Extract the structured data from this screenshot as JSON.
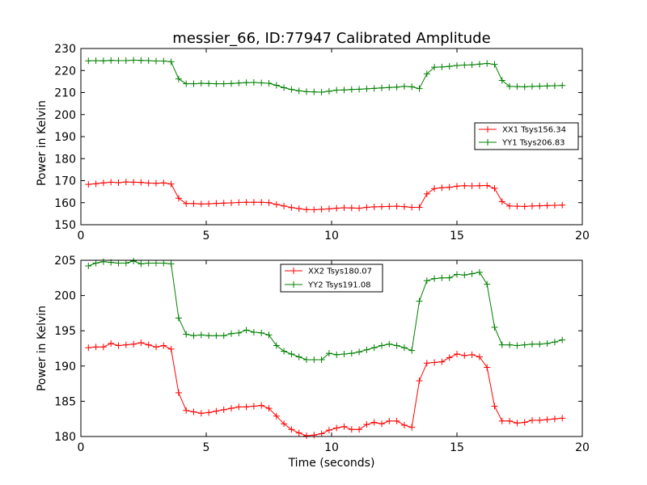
{
  "chart_data": [
    {
      "type": "line",
      "title": "messier_66, ID:77947 Calibrated Amplitude",
      "xlabel": "",
      "ylabel": "Power in Kelvin",
      "xlim": [
        0,
        20
      ],
      "ylim": [
        150,
        230
      ],
      "xticks": [
        0,
        5,
        10,
        15,
        20
      ],
      "yticks": [
        150,
        160,
        170,
        180,
        190,
        200,
        210,
        220,
        230
      ],
      "legend_position": "center-right",
      "x": [
        0.3,
        0.6,
        0.9,
        1.2,
        1.5,
        1.8,
        2.1,
        2.4,
        2.7,
        3.0,
        3.3,
        3.6,
        3.9,
        4.2,
        4.5,
        4.8,
        5.1,
        5.4,
        5.7,
        6.0,
        6.3,
        6.6,
        6.9,
        7.2,
        7.5,
        7.8,
        8.1,
        8.4,
        8.7,
        9.0,
        9.3,
        9.6,
        9.9,
        10.2,
        10.5,
        10.8,
        11.1,
        11.4,
        11.7,
        12.0,
        12.3,
        12.6,
        12.9,
        13.2,
        13.5,
        13.8,
        14.1,
        14.4,
        14.7,
        15.0,
        15.3,
        15.6,
        15.9,
        16.2,
        16.5,
        16.8,
        17.1,
        17.4,
        17.7,
        18.0,
        18.3,
        18.6,
        18.9,
        19.2
      ],
      "series": [
        {
          "name": "XX1 Tsys156.34",
          "color": "#ff0000",
          "values": [
            168.3,
            168.6,
            169.0,
            169.3,
            169.1,
            169.4,
            169.3,
            169.2,
            168.9,
            168.8,
            169.0,
            168.5,
            162.0,
            159.6,
            159.6,
            159.4,
            159.5,
            159.7,
            159.8,
            159.9,
            160.1,
            160.2,
            160.2,
            160.2,
            160.0,
            159.2,
            158.5,
            157.8,
            157.3,
            156.9,
            156.8,
            157.0,
            157.2,
            157.5,
            157.7,
            157.6,
            157.5,
            157.9,
            158.1,
            158.2,
            158.3,
            158.4,
            158.2,
            157.9,
            157.9,
            164.0,
            166.4,
            166.8,
            167.0,
            167.5,
            167.7,
            167.6,
            167.7,
            167.8,
            166.5,
            160.5,
            158.5,
            158.4,
            158.3,
            158.5,
            158.6,
            158.7,
            158.8,
            158.9
          ]
        },
        {
          "name": "YY1 Tsys206.83",
          "color": "#008000",
          "values": [
            224.4,
            224.5,
            224.4,
            224.6,
            224.5,
            224.5,
            224.7,
            224.6,
            224.5,
            224.3,
            224.3,
            224.0,
            216.2,
            214.0,
            214.0,
            214.2,
            214.1,
            214.0,
            214.0,
            214.1,
            214.3,
            214.5,
            214.6,
            214.4,
            214.2,
            213.3,
            212.2,
            211.4,
            210.8,
            210.4,
            210.3,
            210.2,
            210.6,
            211.1,
            211.2,
            211.4,
            211.5,
            211.7,
            211.9,
            212.1,
            212.3,
            212.5,
            212.8,
            212.6,
            211.8,
            218.5,
            221.5,
            221.6,
            221.9,
            222.3,
            222.5,
            222.6,
            222.9,
            223.2,
            222.8,
            215.5,
            212.8,
            212.7,
            212.6,
            212.8,
            212.9,
            213.0,
            213.1,
            213.2
          ]
        }
      ]
    },
    {
      "type": "line",
      "title": "",
      "xlabel": "Time (seconds)",
      "ylabel": "Power in Kelvin",
      "xlim": [
        0,
        20
      ],
      "ylim": [
        180,
        205
      ],
      "xticks": [
        0,
        5,
        10,
        15,
        20
      ],
      "yticks": [
        180,
        185,
        190,
        195,
        200,
        205
      ],
      "legend_position": "top-center",
      "x": [
        0.3,
        0.6,
        0.9,
        1.2,
        1.5,
        1.8,
        2.1,
        2.4,
        2.7,
        3.0,
        3.3,
        3.6,
        3.9,
        4.2,
        4.5,
        4.8,
        5.1,
        5.4,
        5.7,
        6.0,
        6.3,
        6.6,
        6.9,
        7.2,
        7.5,
        7.8,
        8.1,
        8.4,
        8.7,
        9.0,
        9.3,
        9.6,
        9.9,
        10.2,
        10.5,
        10.8,
        11.1,
        11.4,
        11.7,
        12.0,
        12.3,
        12.6,
        12.9,
        13.2,
        13.5,
        13.8,
        14.1,
        14.4,
        14.7,
        15.0,
        15.3,
        15.6,
        15.9,
        16.2,
        16.5,
        16.8,
        17.1,
        17.4,
        17.7,
        18.0,
        18.3,
        18.6,
        18.9,
        19.2
      ],
      "series": [
        {
          "name": "XX2 Tsys180.07",
          "color": "#ff0000",
          "values": [
            192.6,
            192.7,
            192.7,
            193.2,
            192.9,
            193.0,
            193.1,
            193.3,
            193.0,
            192.7,
            192.9,
            192.4,
            186.2,
            183.7,
            183.5,
            183.3,
            183.4,
            183.6,
            183.8,
            184.0,
            184.2,
            184.2,
            184.3,
            184.4,
            184.0,
            182.9,
            181.8,
            181.0,
            180.5,
            180.1,
            180.2,
            180.4,
            180.9,
            181.2,
            181.4,
            181.0,
            181.0,
            181.7,
            182.0,
            181.8,
            182.2,
            182.2,
            181.6,
            181.3,
            187.9,
            190.4,
            190.5,
            190.6,
            191.2,
            191.7,
            191.5,
            191.6,
            191.3,
            189.8,
            184.3,
            182.2,
            182.2,
            181.9,
            182.0,
            182.3,
            182.3,
            182.4,
            182.5,
            182.6
          ]
        },
        {
          "name": "YY2 Tsys191.08",
          "color": "#008000",
          "values": [
            204.2,
            204.6,
            204.8,
            204.7,
            204.6,
            204.6,
            204.9,
            204.5,
            204.6,
            204.6,
            204.6,
            204.5,
            196.8,
            194.5,
            194.3,
            194.4,
            194.3,
            194.3,
            194.3,
            194.6,
            194.7,
            195.1,
            194.8,
            194.7,
            194.4,
            192.9,
            192.1,
            191.7,
            191.3,
            190.9,
            190.9,
            190.9,
            191.8,
            191.6,
            191.7,
            191.8,
            192.0,
            192.3,
            192.6,
            192.9,
            193.1,
            192.9,
            192.6,
            192.2,
            199.2,
            202.1,
            202.4,
            202.5,
            202.5,
            203.0,
            202.9,
            203.1,
            203.3,
            201.6,
            195.5,
            193.0,
            193.0,
            192.9,
            193.0,
            193.1,
            193.1,
            193.2,
            193.4,
            193.7
          ]
        }
      ]
    }
  ]
}
